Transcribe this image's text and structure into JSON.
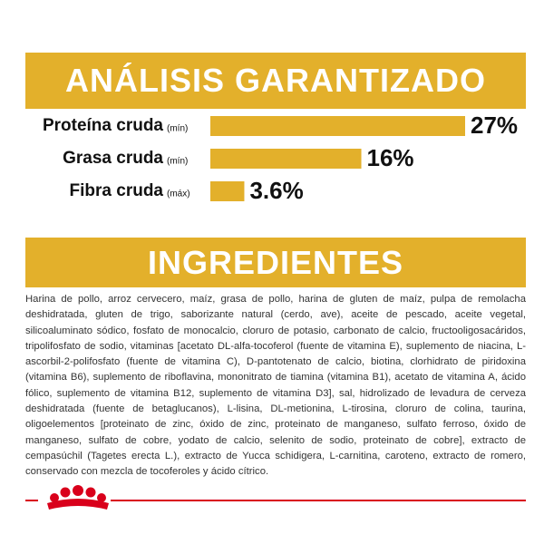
{
  "chart_data": {
    "type": "bar",
    "title": "ANÁLISIS GARANTIZADO",
    "categories": [
      "Proteína cruda",
      "Grasa cruda",
      "Fibra cruda"
    ],
    "qualifiers": [
      "(mín)",
      "(mín)",
      "(máx)"
    ],
    "values": [
      27,
      16,
      3.6
    ],
    "value_labels": [
      "27%",
      "16%",
      "3.6%"
    ],
    "color": "#e3b02b"
  },
  "ingredients": {
    "title": "INGREDIENTES",
    "text": "Harina de pollo, arroz cervecero, maíz, grasa de pollo, harina de gluten de maíz, pulpa de remolacha deshidratada, gluten de trigo, saborizante natural (cerdo, ave), aceite de pescado, aceite vegetal, silicoaluminato sódico, fosfato de monocalcio, cloruro de potasio, carbonato de calcio, fructooligosacáridos, tripolifosfato de sodio, vitaminas [acetato DL-alfa-tocoferol (fuente de vitamina E), suplemento de niacina, L-ascorbil-2-polifosfato (fuente de vitamina C), D-pantotenato de calcio, biotina, clorhidrato de piridoxina (vitamina B6), suplemento de riboflavina, mononitrato de tiamina (vitamina B1), acetato de vitamina A, ácido fólico, suplemento de vitamina B12, suplemento de vitamina D3], sal, hidrolizado de levadura de cerveza deshidratada (fuente de betaglucanos), L-lisina, DL-metionina, L-tirosina, cloruro de colina, taurina, oligoelementos [proteinato de zinc, óxido de zinc, proteinato de manganeso, sulfato ferroso, óxido de manganeso, sulfato de cobre, yodato de calcio, selenito de sodio, proteinato de cobre], extracto de cempasúchil (Tagetes erecta L.), extracto de Yucca schidigera, L-carnitina, caroteno, extracto de romero, conservado con mezcla de tocoferoles y ácido cítrico."
  }
}
